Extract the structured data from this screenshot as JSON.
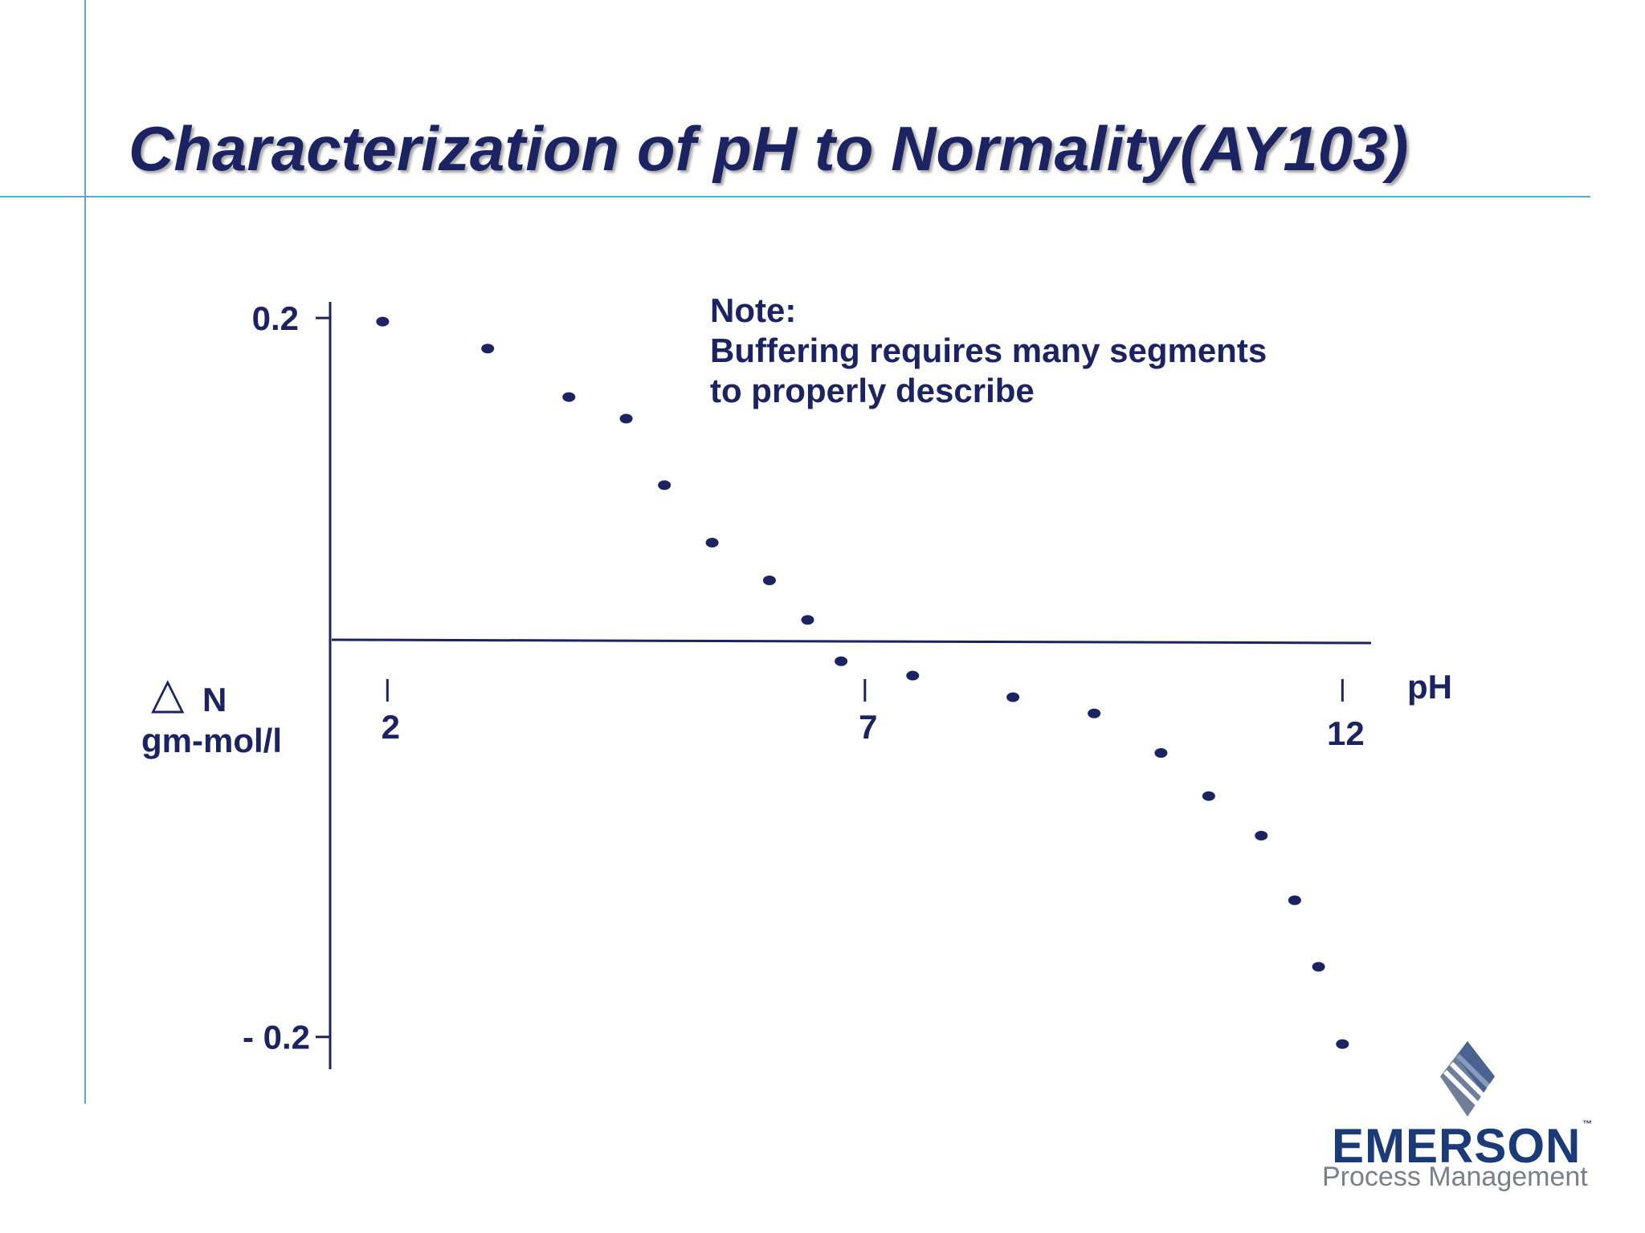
{
  "title": "Characterization of pH to Normality(AY103)",
  "note": {
    "heading": "Note:",
    "line1": "Buffering requires many segments",
    "line2": "to properly describe"
  },
  "brand": {
    "name": "EMERSON",
    "tm": "™",
    "subtitle": "Process Management"
  },
  "colors": {
    "ink": "#1b2362",
    "rule": "#5aa9d2",
    "brand": "#1b3a78",
    "brand_gray": "#7a7f8a"
  },
  "chart_data": {
    "type": "scatter",
    "xlabel": "pH",
    "ylabel_symbol": "△",
    "ylabel_n": "N",
    "ylabel_unit": "gm-mol/l",
    "xlim": [
      1.4,
      12.3
    ],
    "ylim": [
      -0.218,
      0.209
    ],
    "x_ticks": [
      {
        "value": 2,
        "label": "2"
      },
      {
        "value": 7,
        "label": "7"
      },
      {
        "value": 12,
        "label": "12"
      }
    ],
    "y_ticks": [
      {
        "value": 0.2,
        "label": "0.2"
      },
      {
        "value": -0.2,
        "label": "- 0.2"
      }
    ],
    "grid": false,
    "points": [
      {
        "x": 1.95,
        "y": 0.198
      },
      {
        "x": 3.05,
        "y": 0.183
      },
      {
        "x": 3.9,
        "y": 0.156
      },
      {
        "x": 4.5,
        "y": 0.144
      },
      {
        "x": 4.9,
        "y": 0.107
      },
      {
        "x": 5.4,
        "y": 0.075
      },
      {
        "x": 6.0,
        "y": 0.054
      },
      {
        "x": 6.4,
        "y": 0.032
      },
      {
        "x": 6.75,
        "y": 0.009
      },
      {
        "x": 7.5,
        "y": 0.001
      },
      {
        "x": 8.55,
        "y": -0.011
      },
      {
        "x": 9.4,
        "y": -0.02
      },
      {
        "x": 10.1,
        "y": -0.042
      },
      {
        "x": 10.6,
        "y": -0.066
      },
      {
        "x": 11.15,
        "y": -0.088
      },
      {
        "x": 11.5,
        "y": -0.124
      },
      {
        "x": 11.75,
        "y": -0.161
      },
      {
        "x": 12.0,
        "y": -0.204
      }
    ]
  }
}
